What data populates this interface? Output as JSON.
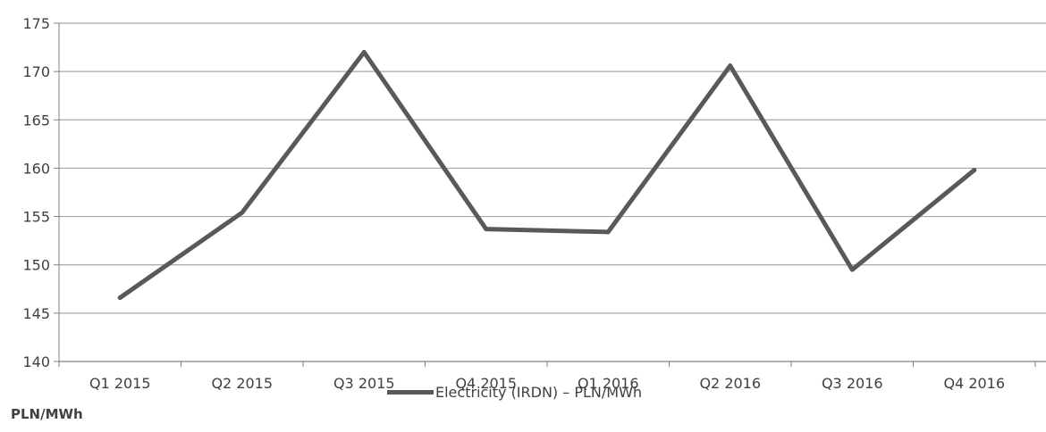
{
  "chart_data": {
    "type": "line",
    "categories": [
      "Q1 2015",
      "Q2 2015",
      "Q3 2015",
      "Q4 2015",
      "Q1 2016",
      "Q2 2016",
      "Q3 2016",
      "Q4 2016"
    ],
    "series": [
      {
        "name": "Electricity (IRDN) – PLN/MWh",
        "values": [
          146.6,
          155.4,
          172.0,
          153.7,
          153.4,
          170.6,
          149.5,
          159.8
        ]
      }
    ],
    "ylim": [
      140,
      175
    ],
    "yticks": [
      "140",
      "145",
      "150",
      "155",
      "160",
      "165",
      "170",
      "175"
    ],
    "grid": true,
    "legend_position": "bottom",
    "unit_label": "PLN/MWh",
    "colors": {
      "line": "#595959",
      "grid": "#a6a6a6",
      "axis": "#808080",
      "text": "#404040"
    }
  }
}
